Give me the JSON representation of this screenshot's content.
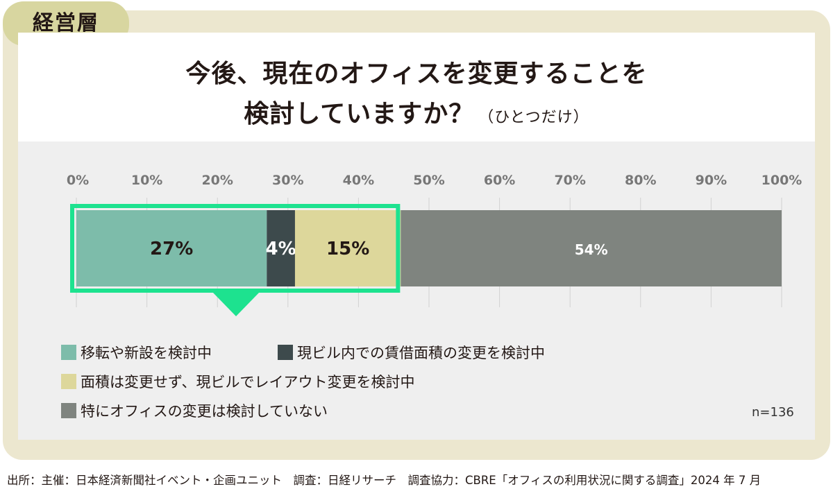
{
  "badge": "経営層",
  "title": {
    "line1": "今後、現在のオフィスを変更することを",
    "line2": "検討していますか？",
    "note": "（ひとつだけ）"
  },
  "chart_data": {
    "type": "bar",
    "orientation": "horizontal-stacked-100",
    "categories": [
      "経営層"
    ],
    "series": [
      {
        "name": "移転や新設を検討中",
        "values": [
          27
        ],
        "color": "#7dbcaa"
      },
      {
        "name": "現ビル内での賃借面積の変更を検討中",
        "values": [
          4
        ],
        "color": "#3d4a4c"
      },
      {
        "name": "面積は変更せず、現ビルでレイアウト変更を検討中",
        "values": [
          15
        ],
        "color": "#ddd79b"
      },
      {
        "name": "特にオフィスの変更は検討していない",
        "values": [
          54
        ],
        "color": "#7f847f"
      }
    ],
    "data_labels": [
      "27%",
      "4%",
      "15%",
      "54%"
    ],
    "x_ticks": [
      "0%",
      "10%",
      "20%",
      "30%",
      "40%",
      "50%",
      "60%",
      "70%",
      "80%",
      "90%",
      "100%"
    ],
    "xlim": [
      0,
      100
    ],
    "grid": true,
    "highlight": {
      "from": 0,
      "to": 46,
      "color": "#1de28f"
    }
  },
  "n_label": "n=136",
  "source": "出所：主催：日本経済新聞社イベント・企画ユニット　調査：日経リサーチ　調査協力：CBRE「オフィスの利用状況に関する調査」2024 年 7 月"
}
